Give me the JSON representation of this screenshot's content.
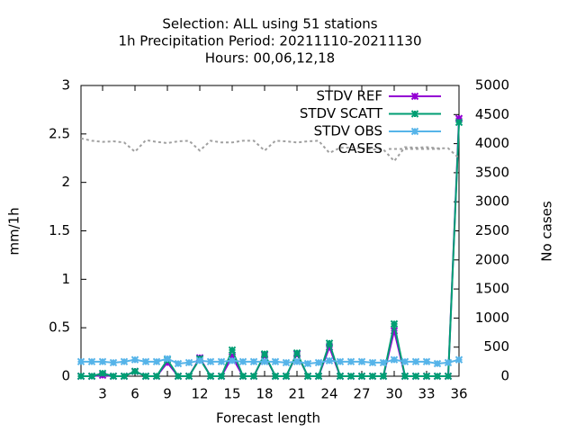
{
  "chart_data": {
    "type": "line",
    "title": [
      "Selection: ALL using    51 stations",
      "1h Precipitation   Period: 20211110-20211130",
      "Hours:  00,06,12,18"
    ],
    "x_label": "Forecast length",
    "y_label": "mm/1h",
    "y2_label": "No cases",
    "x": [
      1,
      2,
      3,
      4,
      5,
      6,
      7,
      8,
      9,
      10,
      11,
      12,
      13,
      14,
      15,
      16,
      17,
      18,
      19,
      20,
      21,
      22,
      23,
      24,
      25,
      26,
      27,
      28,
      29,
      30,
      31,
      32,
      33,
      34,
      35,
      36
    ],
    "xlim": [
      1,
      36
    ],
    "xticks": [
      3,
      6,
      9,
      12,
      15,
      18,
      21,
      24,
      27,
      30,
      33,
      36
    ],
    "ylim": [
      0,
      3
    ],
    "yticks": [
      0,
      0.5,
      1,
      1.5,
      2,
      2.5,
      3
    ],
    "y2lim": [
      0,
      5000
    ],
    "y2ticks": [
      0,
      500,
      1000,
      1500,
      2000,
      2500,
      3000,
      3500,
      4000,
      4500,
      5000
    ],
    "legend": "top-right",
    "series": [
      {
        "name": "STDV REF",
        "color": "#9400d3",
        "values": [
          0,
          0,
          0.01,
          0,
          0,
          0.05,
          0,
          0,
          0.14,
          0,
          0,
          0.19,
          0,
          0,
          0.2,
          0,
          0,
          0.22,
          0,
          0,
          0.23,
          0,
          0,
          0.3,
          0,
          0,
          0,
          0,
          0,
          0.47,
          0,
          0,
          0,
          0,
          0,
          2.66
        ]
      },
      {
        "name": "STDV SCATT",
        "color": "#009e73",
        "values": [
          0,
          0,
          0.03,
          0,
          0,
          0.05,
          0,
          0,
          0.17,
          0,
          0,
          0.18,
          0,
          0,
          0.27,
          0,
          0,
          0.23,
          0,
          0,
          0.24,
          0,
          0,
          0.34,
          0,
          0,
          0,
          0,
          0,
          0.54,
          0,
          0,
          0,
          0,
          0,
          2.62
        ]
      },
      {
        "name": "STDV OBS",
        "color": "#56b4e9",
        "values": [
          0.15,
          0.15,
          0.15,
          0.14,
          0.15,
          0.17,
          0.15,
          0.15,
          0.18,
          0.13,
          0.14,
          0.16,
          0.15,
          0.15,
          0.16,
          0.15,
          0.15,
          0.15,
          0.15,
          0.14,
          0.15,
          0.13,
          0.14,
          0.16,
          0.15,
          0.15,
          0.15,
          0.14,
          0.14,
          0.17,
          0.15,
          0.15,
          0.15,
          0.13,
          0.14,
          0.17
        ]
      },
      {
        "name": "CASES",
        "color": "#a0a0a0",
        "axis": "y2",
        "dashed": true,
        "values": [
          4090,
          4050,
          4030,
          4040,
          4020,
          3860,
          4060,
          4030,
          4010,
          4040,
          4050,
          3880,
          4050,
          4020,
          4020,
          4050,
          4050,
          3880,
          4050,
          4040,
          4020,
          4040,
          4050,
          3840,
          3930,
          3930,
          3920,
          3900,
          3900,
          3700,
          3940,
          3930,
          3940,
          3920,
          3920,
          3750
        ]
      }
    ]
  }
}
